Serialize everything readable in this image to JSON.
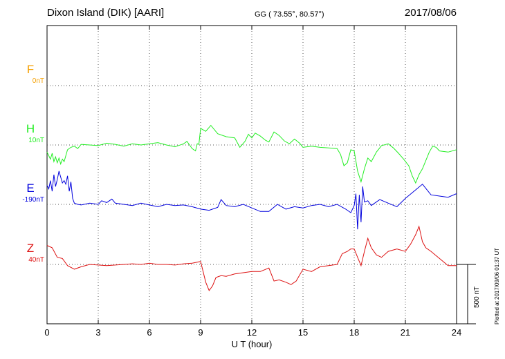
{
  "header": {
    "station": "Dixon Island (DIK)  [AARI]",
    "coords": "GG ( 73.55°,  80.57°)",
    "date": "2017/08/06"
  },
  "plotted_note": "Plotted at 2017/09/06 01:37 UT",
  "chart_data": {
    "type": "line",
    "title": "",
    "xlabel": "U T (hour)",
    "ylabel": "",
    "xlim": [
      0,
      24
    ],
    "x_ticks": [
      0,
      3,
      6,
      9,
      12,
      15,
      18,
      21,
      24
    ],
    "x_tick_labels": [
      "0",
      "3",
      "6",
      "9",
      "12",
      "15",
      "18",
      "21",
      "24"
    ],
    "grid": true,
    "scale_bar_label": "500 nT",
    "scale_nT": 500,
    "series": [
      {
        "name": "F",
        "baseline_label": "0nT",
        "color": "#f5a000",
        "x": [],
        "y": []
      },
      {
        "name": "H",
        "baseline_label": "10nT",
        "color": "#22ee22",
        "x": [
          0.0,
          0.1,
          0.2,
          0.3,
          0.4,
          0.5,
          0.6,
          0.7,
          0.8,
          0.9,
          1.0,
          1.2,
          1.4,
          1.6,
          1.8,
          2.0,
          2.5,
          3.0,
          3.5,
          4.0,
          4.5,
          5.0,
          5.5,
          6.0,
          6.5,
          7.0,
          7.5,
          8.0,
          8.2,
          8.5,
          8.7,
          8.8,
          8.9,
          9.0,
          9.3,
          9.6,
          10.0,
          10.5,
          11.0,
          11.3,
          11.6,
          11.8,
          12.0,
          12.2,
          12.5,
          12.8,
          13.0,
          13.3,
          13.6,
          13.9,
          14.2,
          14.5,
          14.8,
          15.0,
          15.5,
          16.0,
          16.5,
          17.0,
          17.2,
          17.4,
          17.6,
          17.8,
          18.0,
          18.2,
          18.4,
          18.6,
          18.8,
          19.0,
          19.3,
          19.6,
          20.0,
          20.3,
          20.6,
          20.9,
          21.2,
          21.4,
          21.6,
          21.8,
          22.0,
          22.2,
          22.4,
          22.6,
          22.8,
          23.0,
          23.5,
          24.0
        ],
        "y": [
          -60,
          -90,
          -120,
          -70,
          -140,
          -100,
          -150,
          -110,
          -160,
          -120,
          -140,
          -40,
          -20,
          -10,
          -30,
          5,
          0,
          -5,
          15,
          5,
          -10,
          10,
          0,
          10,
          20,
          0,
          -15,
          10,
          30,
          -30,
          -50,
          10,
          5,
          140,
          115,
          165,
          95,
          70,
          60,
          -20,
          30,
          90,
          60,
          100,
          75,
          40,
          25,
          110,
          80,
          35,
          10,
          50,
          15,
          -20,
          -10,
          -20,
          -25,
          -30,
          -80,
          -175,
          -150,
          -40,
          -50,
          -220,
          -310,
          -200,
          -110,
          -140,
          -60,
          -5,
          10,
          -25,
          -70,
          -120,
          -175,
          -260,
          -320,
          -250,
          -200,
          -130,
          -60,
          -10,
          -20,
          -50,
          -60,
          -40
        ]
      },
      {
        "name": "E",
        "baseline_label": "-190nT",
        "color": "#0000dd",
        "x": [
          0.0,
          0.1,
          0.2,
          0.3,
          0.4,
          0.5,
          0.6,
          0.7,
          0.8,
          0.9,
          1.0,
          1.1,
          1.2,
          1.3,
          1.4,
          1.5,
          1.6,
          1.8,
          2.0,
          2.5,
          3.0,
          3.2,
          3.5,
          3.8,
          4.0,
          4.5,
          5.0,
          5.5,
          6.0,
          6.5,
          7.0,
          7.5,
          8.0,
          8.5,
          9.0,
          9.5,
          10.0,
          10.2,
          10.5,
          11.0,
          11.5,
          12.0,
          12.5,
          13.0,
          13.5,
          14.0,
          14.5,
          15.0,
          15.5,
          16.0,
          16.5,
          17.0,
          17.5,
          17.8,
          18.0,
          18.1,
          18.2,
          18.3,
          18.4,
          18.5,
          18.6,
          18.8,
          19.0,
          19.5,
          20.0,
          20.5,
          21.0,
          21.5,
          22.0,
          22.5,
          23.0,
          23.5,
          24.0
        ],
        "y": [
          160,
          130,
          200,
          110,
          250,
          150,
          210,
          280,
          230,
          180,
          200,
          170,
          240,
          110,
          190,
          50,
          10,
          0,
          -5,
          10,
          0,
          30,
          15,
          45,
          10,
          0,
          -10,
          10,
          -5,
          -20,
          0,
          -10,
          -5,
          -20,
          -40,
          -50,
          -25,
          40,
          -10,
          -20,
          0,
          -30,
          -60,
          -60,
          0,
          -40,
          -20,
          -30,
          -10,
          0,
          -20,
          0,
          -40,
          -70,
          -10,
          90,
          -210,
          80,
          -150,
          150,
          20,
          30,
          -10,
          40,
          10,
          -20,
          50,
          110,
          170,
          80,
          70,
          60,
          90
        ]
      },
      {
        "name": "Z",
        "baseline_label": "40nT",
        "color": "#dd1111",
        "x": [
          0.0,
          0.3,
          0.6,
          0.9,
          1.2,
          1.6,
          2.0,
          2.5,
          3.0,
          3.5,
          4.0,
          4.5,
          5.0,
          5.5,
          6.0,
          6.5,
          7.0,
          7.5,
          8.0,
          8.5,
          9.0,
          9.3,
          9.5,
          9.7,
          9.9,
          10.2,
          10.5,
          11.0,
          11.5,
          12.0,
          12.5,
          13.0,
          13.3,
          13.6,
          14.0,
          14.3,
          14.6,
          15.0,
          15.5,
          16.0,
          16.5,
          17.0,
          17.3,
          17.6,
          17.8,
          18.0,
          18.2,
          18.4,
          18.6,
          18.8,
          19.0,
          19.3,
          19.6,
          20.0,
          20.5,
          21.0,
          21.3,
          21.6,
          21.8,
          22.0,
          22.2,
          22.5,
          23.0,
          23.5,
          24.0
        ],
        "y": [
          160,
          140,
          60,
          50,
          -10,
          -40,
          -20,
          0,
          -5,
          -10,
          -5,
          0,
          5,
          0,
          10,
          0,
          0,
          -5,
          5,
          10,
          25,
          -150,
          -220,
          -180,
          -110,
          -95,
          -100,
          -80,
          -70,
          -60,
          -60,
          -30,
          -140,
          -130,
          -150,
          -170,
          -140,
          -40,
          -60,
          -20,
          -10,
          0,
          90,
          110,
          130,
          130,
          60,
          -10,
          110,
          220,
          140,
          80,
          60,
          110,
          130,
          110,
          170,
          250,
          320,
          190,
          140,
          110,
          50,
          -10,
          -10
        ]
      }
    ]
  }
}
